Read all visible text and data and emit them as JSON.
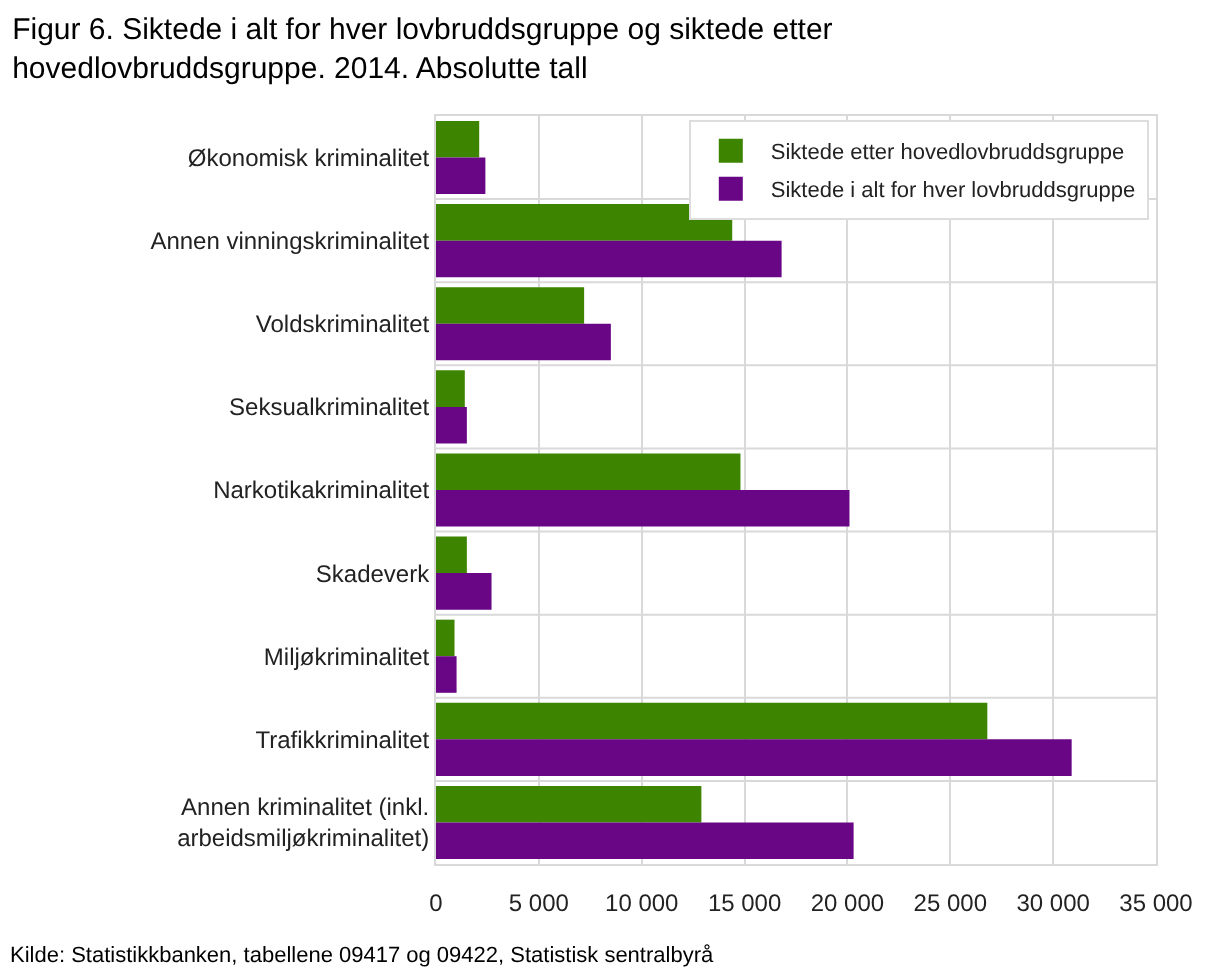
{
  "chart_data": {
    "type": "bar",
    "orientation": "horizontal",
    "title": "Figur 6. Siktede i alt for hver lovbruddsgruppe og siktede etter hovedlovbruddsgruppe. 2014. Absolutte tall",
    "categories": [
      "Økonomisk kriminalitet",
      "Annen vinningskriminalitet",
      "Voldskriminalitet",
      "Seksualkriminalitet",
      "Narkotikakriminalitet",
      "Skadeverk",
      "Miljøkriminalitet",
      "Trafikkriminalitet",
      "Annen kriminalitet (inkl. arbeidsmiljøkriminalitet)"
    ],
    "series": [
      {
        "name": "Siktede etter hovedlovbruddsgruppe",
        "color": "#3d8500",
        "values": [
          2100,
          14400,
          7200,
          1400,
          14800,
          1500,
          900,
          26800,
          12900
        ]
      },
      {
        "name": "Siktede i alt for hver lovbruddsgruppe",
        "color": "#690685",
        "values": [
          2400,
          16800,
          8500,
          1500,
          20100,
          2700,
          1000,
          30900,
          20300
        ]
      }
    ],
    "xlim": [
      0,
      35000
    ],
    "xticks": [
      0,
      {
        "value": 5000,
        "label": "5 000"
      },
      {
        "value": 10000,
        "label": "10 000"
      },
      {
        "value": 15000,
        "label": "15 000"
      },
      {
        "value": 20000,
        "label": "20 000"
      },
      {
        "value": 25000,
        "label": "25 000"
      },
      {
        "value": 30000,
        "label": "30 000"
      },
      {
        "value": 35000,
        "label": "35 000"
      }
    ],
    "grid": true,
    "legend": "top right",
    "annotations": [
      "Kilde: Statistikkbanken, tabellene 09417 og 09422, Statistisk sentralbyrå"
    ]
  }
}
